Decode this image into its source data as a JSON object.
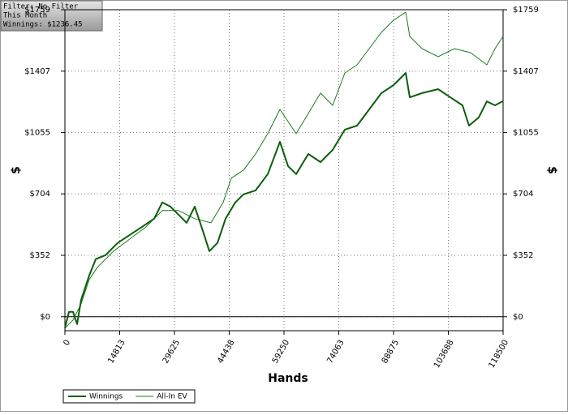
{
  "chart_data": {
    "type": "line",
    "annotations": [
      "Filter: No Filter",
      "This Month",
      "Winnings: $1236.45"
    ],
    "x_label": "Hands",
    "y_label": "$",
    "y2_label": "$",
    "xlim": [
      0,
      118500
    ],
    "xticks": [
      0,
      14813,
      29625,
      44438,
      59250,
      74063,
      88875,
      103688,
      118500
    ],
    "ylim": [
      -80,
      1759
    ],
    "yticks": [
      {
        "value": 0,
        "label": "$0"
      },
      {
        "value": 352,
        "label": "$352"
      },
      {
        "value": 704,
        "label": "$704"
      },
      {
        "value": 1055,
        "label": "$1055"
      },
      {
        "value": 1407,
        "label": "$1407"
      },
      {
        "value": 1759,
        "label": "$1759"
      }
    ],
    "grid": true,
    "legend": "bottom",
    "series": [
      {
        "name": "Winnings",
        "color": "#0b5e0b",
        "line_width": 2,
        "x": [
          0,
          1097,
          2194,
          3292,
          4389,
          6583,
          8339,
          10972,
          14264,
          17556,
          20847,
          24139,
          26333,
          28528,
          30722,
          32917,
          35111,
          37306,
          39061,
          41256,
          43450,
          46083,
          48278,
          51569,
          54861,
          58153,
          60347,
          62542,
          65833,
          69125,
          72417,
          75708,
          79000,
          82292,
          85583,
          88875,
          92167,
          93264,
          96556,
          100944,
          104236,
          107528,
          109283,
          111917,
          114111,
          116306,
          118500
        ],
        "values": [
          -65,
          28,
          28,
          -42,
          97,
          237,
          330,
          353,
          423,
          469,
          515,
          562,
          655,
          631,
          585,
          538,
          631,
          492,
          376,
          423,
          562,
          655,
          701,
          724,
          817,
          1002,
          863,
          817,
          933,
          886,
          956,
          1072,
          1095,
          1188,
          1281,
          1327,
          1397,
          1257,
          1281,
          1304,
          1257,
          1211,
          1095,
          1142,
          1234,
          1211,
          1236
        ]
      },
      {
        "name": "All-In EV",
        "color": "#1d7a1d",
        "line_width": 1,
        "x": [
          0,
          2194,
          4389,
          6583,
          8778,
          13167,
          17556,
          21944,
          26333,
          30722,
          35111,
          39500,
          42792,
          44986,
          48278,
          51569,
          54861,
          58153,
          60347,
          62542,
          65833,
          69125,
          72417,
          75708,
          79000,
          82292,
          85583,
          88875,
          92167,
          93264,
          96556,
          100944,
          105333,
          109722,
          114111,
          116306,
          118500
        ],
        "values": [
          -65,
          -19,
          74,
          213,
          283,
          376,
          445,
          515,
          608,
          608,
          562,
          538,
          655,
          794,
          840,
          933,
          1049,
          1188,
          1118,
          1049,
          1165,
          1281,
          1211,
          1397,
          1443,
          1536,
          1629,
          1699,
          1745,
          1606,
          1536,
          1490,
          1536,
          1513,
          1443,
          1536,
          1606
        ]
      }
    ]
  }
}
